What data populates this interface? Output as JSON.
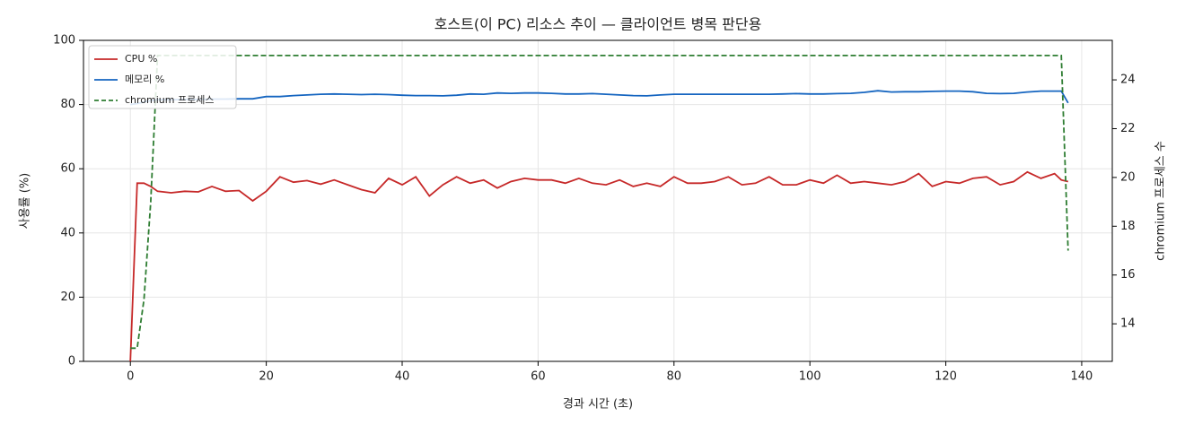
{
  "chart_data": {
    "type": "line",
    "title": "호스트(이 PC) 리소스 추이 — 클라이언트 병목 판단용",
    "xlabel": "경과 시간 (초)",
    "ylabel": "사용률 (%)",
    "y2label": "chromium 프로세스 수",
    "x": [
      0,
      1,
      2,
      3,
      4,
      6,
      8,
      10,
      12,
      14,
      16,
      18,
      20,
      22,
      24,
      26,
      28,
      30,
      32,
      34,
      36,
      38,
      40,
      42,
      44,
      46,
      48,
      50,
      52,
      54,
      56,
      58,
      60,
      62,
      64,
      66,
      68,
      70,
      72,
      74,
      76,
      78,
      80,
      82,
      84,
      86,
      88,
      90,
      92,
      94,
      96,
      98,
      100,
      102,
      104,
      106,
      108,
      110,
      112,
      114,
      116,
      118,
      120,
      122,
      124,
      126,
      128,
      130,
      132,
      134,
      136,
      137,
      138
    ],
    "series": [
      {
        "name": "CPU %",
        "color": "#c62828",
        "axis": "y",
        "linestyle": "solid",
        "values": [
          0,
          55.5,
          55.5,
          54.5,
          53,
          52.5,
          53,
          52.8,
          54.5,
          53,
          53.2,
          50,
          53,
          57.5,
          55.8,
          56.3,
          55.2,
          56.5,
          55,
          53.5,
          52.5,
          57,
          55,
          57.5,
          51.5,
          55,
          57.5,
          55.5,
          56.5,
          54,
          56,
          57,
          56.5,
          56.5,
          55.5,
          57,
          55.5,
          55,
          56.5,
          54.5,
          55.5,
          54.5,
          57.5,
          55.5,
          55.5,
          56,
          57.5,
          55,
          55.5,
          57.5,
          55,
          55,
          56.5,
          55.5,
          58,
          55.5,
          56,
          55.5,
          55,
          56,
          58.5,
          54.5,
          56,
          55.5,
          57,
          57.5,
          55,
          56,
          59,
          57,
          58.5,
          56.5,
          56
        ]
      },
      {
        "name": "메모리 %",
        "color": "#1565c0",
        "axis": "y",
        "linestyle": "solid",
        "values": [
          80,
          80.3,
          80.8,
          81.2,
          81.5,
          81.5,
          81.6,
          81.6,
          81.7,
          81.7,
          81.8,
          81.8,
          82.5,
          82.5,
          82.8,
          83,
          83.2,
          83.3,
          83.2,
          83.1,
          83.2,
          83.1,
          82.9,
          82.8,
          82.8,
          82.7,
          82.9,
          83.3,
          83.2,
          83.6,
          83.5,
          83.6,
          83.6,
          83.5,
          83.3,
          83.3,
          83.4,
          83.2,
          83,
          82.8,
          82.7,
          83,
          83.2,
          83.2,
          83.2,
          83.2,
          83.2,
          83.2,
          83.2,
          83.2,
          83.3,
          83.4,
          83.3,
          83.3,
          83.4,
          83.5,
          83.8,
          84.3,
          83.9,
          84,
          84,
          84.1,
          84.2,
          84.2,
          84,
          83.5,
          83.4,
          83.5,
          83.9,
          84.2,
          84.2,
          84.2,
          80.5
        ]
      },
      {
        "name": "chromium 프로세스",
        "color": "#2e7d32",
        "axis": "y2",
        "linestyle": "dashed",
        "values": [
          13,
          13,
          15,
          19,
          25,
          25,
          25,
          25,
          25,
          25,
          25,
          25,
          25,
          25,
          25,
          25,
          25,
          25,
          25,
          25,
          25,
          25,
          25,
          25,
          25,
          25,
          25,
          25,
          25,
          25,
          25,
          25,
          25,
          25,
          25,
          25,
          25,
          25,
          25,
          25,
          25,
          25,
          25,
          25,
          25,
          25,
          25,
          25,
          25,
          25,
          25,
          25,
          25,
          25,
          25,
          25,
          25,
          25,
          25,
          25,
          25,
          25,
          25,
          25,
          25,
          25,
          25,
          25,
          25,
          25,
          25,
          25,
          17
        ]
      }
    ],
    "xlim": [
      -6.9,
      144.5
    ],
    "xticks": [
      0,
      20,
      40,
      60,
      80,
      100,
      120,
      140
    ],
    "ylim": [
      0,
      100
    ],
    "yticks": [
      0,
      20,
      40,
      60,
      80,
      100
    ],
    "y2lim": [
      12.46,
      25.62
    ],
    "y2ticks": [
      14,
      16,
      18,
      20,
      22,
      24
    ],
    "grid": true,
    "legend": "upper-left"
  }
}
